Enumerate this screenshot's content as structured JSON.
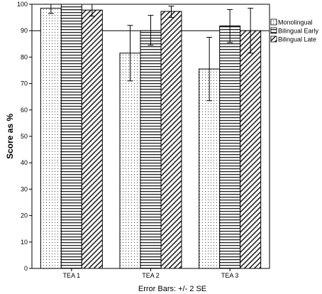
{
  "chart_data": {
    "type": "bar",
    "categories": [
      "TEA 1",
      "TEA 2",
      "TEA 3"
    ],
    "series": [
      {
        "name": "Monolingual",
        "values": [
          98.5,
          81.5,
          75.5
        ],
        "err_low": [
          96.5,
          71.0,
          63.5
        ],
        "err_high": [
          100.0,
          92.0,
          87.5
        ],
        "pattern": "dots"
      },
      {
        "name": "Bilingual Early",
        "values": [
          100.0,
          90.0,
          91.8
        ],
        "err_low": [
          100.0,
          84.5,
          85.5
        ],
        "err_high": [
          100.0,
          95.8,
          98.0
        ],
        "pattern": "horizontal"
      },
      {
        "name": "Bilingual Late",
        "values": [
          97.8,
          97.3,
          90.0
        ],
        "err_low": [
          95.5,
          95.0,
          81.5
        ],
        "err_high": [
          100.0,
          99.3,
          98.5
        ],
        "pattern": "diagonal"
      }
    ],
    "ylabel": "Score as %",
    "xlabel": "",
    "ylim": [
      0,
      100
    ],
    "yticks": [
      0,
      10,
      20,
      30,
      40,
      50,
      60,
      70,
      80,
      90,
      100
    ],
    "grid": "horizontal at 90",
    "legend_position": "top-right",
    "footnote": "Error Bars: +/- 2 SE"
  }
}
